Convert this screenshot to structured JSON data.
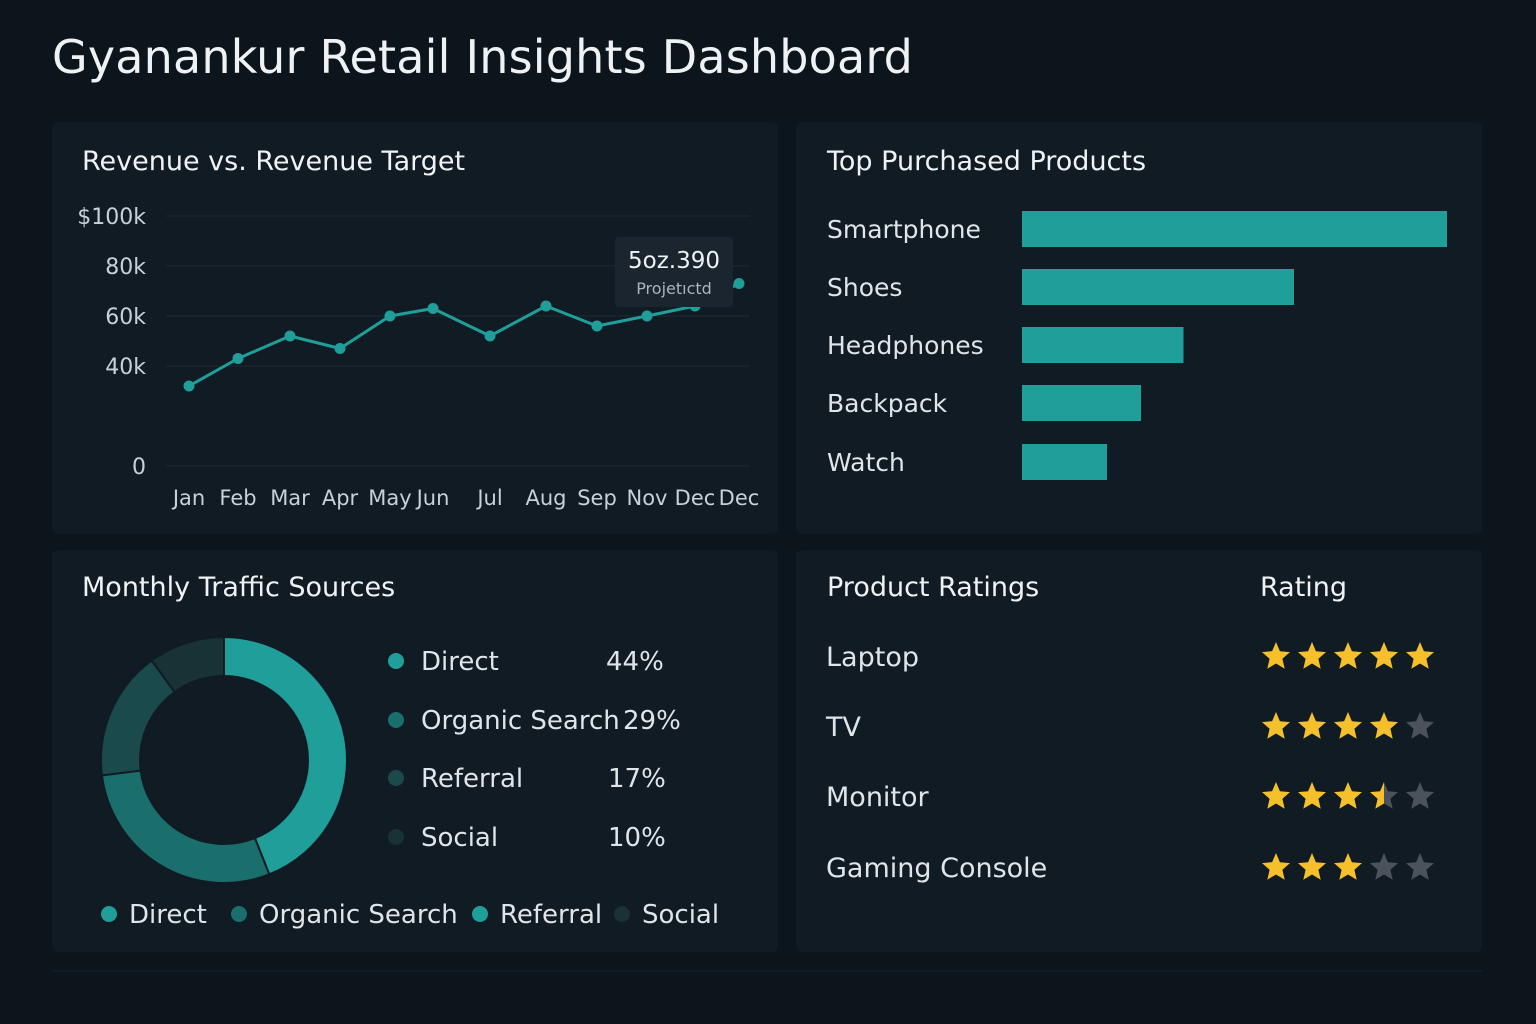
{
  "dashboard": {
    "title": "Gyanankur Retail Insights Dashboard"
  },
  "colors": {
    "accent": "#1f9e9a",
    "accent_mid": "#1a6f6d",
    "accent_dark": "#1b4a4d",
    "accent_darker": "#183236",
    "star_on": "#f5c02b",
    "star_off": "#4b525c"
  },
  "chart_data": [
    {
      "type": "line",
      "title": "Revenue vs. Revenue Target",
      "categories": [
        "Jan",
        "Feb",
        "Mar",
        "Apr",
        "May",
        "Jun",
        "Jul",
        "Aug",
        "Sep",
        "Nov",
        "Dec",
        "Dec"
      ],
      "series": [
        {
          "values": [
            32000,
            43000,
            52000,
            47000,
            60000,
            63000,
            52000,
            64000,
            56000,
            60000,
            64000,
            73000
          ]
        }
      ],
      "yticks": [
        "$100k",
        "80k",
        "60k",
        "40k",
        "0"
      ],
      "ylim": [
        0,
        100000
      ],
      "grid": true,
      "annotation": {
        "value": "5oz.390",
        "label": "Projetıctd"
      }
    },
    {
      "type": "bar",
      "title": "Top Purchased Products",
      "orientation": "horizontal",
      "categories": [
        "Smartphone",
        "Shoes",
        "Headphones",
        "Backpack",
        "Watch"
      ],
      "values": [
        100,
        64,
        38,
        28,
        20
      ]
    },
    {
      "type": "pie",
      "title": "Monthly Traffic Sources",
      "donut": true,
      "categories": [
        "Direct",
        "Organic Search",
        "Referral",
        "Social"
      ],
      "values": [
        44,
        29,
        17,
        10
      ],
      "value_labels": [
        "44%",
        "29%",
        "17%",
        "10%"
      ],
      "bottom_legend": [
        "Direct",
        "Organic Search",
        "Referral",
        "Social"
      ]
    }
  ],
  "ratings": {
    "title": "Product Ratings",
    "column_header": "Rating",
    "items": [
      {
        "name": "Laptop",
        "stars": 5
      },
      {
        "name": "TV",
        "stars": 4
      },
      {
        "name": "Monitor",
        "stars": 3.5
      },
      {
        "name": "Gaming Console",
        "stars": 3
      }
    ]
  }
}
